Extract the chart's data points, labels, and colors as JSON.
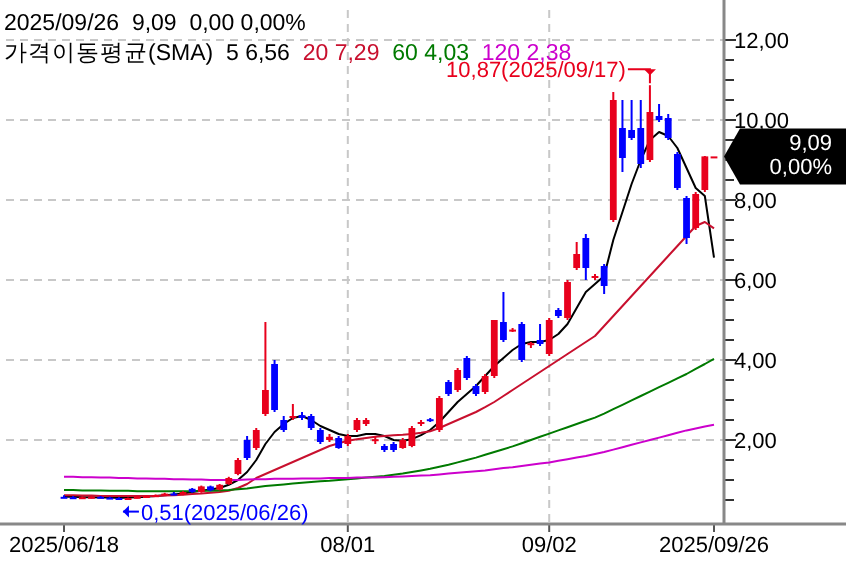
{
  "chart_data": {
    "type": "candlestick",
    "title": "2025/09/26  9,09  0,00 0,00%",
    "legend_title": "가격이동평균(SMA)",
    "legend": "top",
    "grid": true,
    "categories": [
      "2025/06/18",
      null,
      null,
      null,
      null,
      null,
      null,
      null,
      null,
      null,
      null,
      null,
      null,
      null,
      null,
      null,
      null,
      null,
      null,
      null,
      null,
      null,
      null,
      null,
      null,
      null,
      null,
      null,
      null,
      null,
      null,
      "08/01",
      null,
      null,
      null,
      null,
      null,
      null,
      null,
      null,
      null,
      null,
      null,
      null,
      null,
      null,
      null,
      null,
      null,
      null,
      null,
      null,
      null,
      "09/02",
      null,
      null,
      null,
      null,
      null,
      null,
      null,
      null,
      null,
      null,
      null,
      null,
      null,
      null,
      null,
      null,
      null,
      "2025/09/26"
    ],
    "ohlc": [
      [
        0.58,
        0.62,
        0.55,
        0.57
      ],
      [
        0.57,
        0.6,
        0.54,
        0.56
      ],
      [
        0.56,
        0.59,
        0.54,
        0.57
      ],
      [
        0.56,
        0.6,
        0.54,
        0.58
      ],
      [
        0.58,
        0.6,
        0.55,
        0.56
      ],
      [
        0.56,
        0.58,
        0.53,
        0.55
      ],
      [
        0.55,
        0.57,
        0.51,
        0.54
      ],
      [
        0.54,
        0.56,
        0.52,
        0.55
      ],
      [
        0.55,
        0.6,
        0.54,
        0.58
      ],
      [
        0.58,
        0.62,
        0.56,
        0.6
      ],
      [
        0.6,
        0.64,
        0.58,
        0.62
      ],
      [
        0.62,
        0.68,
        0.6,
        0.66
      ],
      [
        0.66,
        0.7,
        0.62,
        0.64
      ],
      [
        0.64,
        0.72,
        0.62,
        0.7
      ],
      [
        0.78,
        0.8,
        0.68,
        0.7
      ],
      [
        0.7,
        0.86,
        0.68,
        0.84
      ],
      [
        0.84,
        0.86,
        0.72,
        0.74
      ],
      [
        0.76,
        0.9,
        0.74,
        0.88
      ],
      [
        0.9,
        1.08,
        0.88,
        1.05
      ],
      [
        1.15,
        1.55,
        1.12,
        1.5
      ],
      [
        2.0,
        2.1,
        1.5,
        1.55
      ],
      [
        1.8,
        2.3,
        1.75,
        2.25
      ],
      [
        2.65,
        4.95,
        2.6,
        3.25
      ],
      [
        3.9,
        4.0,
        2.7,
        2.75
      ],
      [
        2.5,
        2.6,
        2.2,
        2.25
      ],
      [
        2.55,
        2.9,
        2.5,
        2.6
      ],
      [
        2.62,
        2.7,
        2.5,
        2.55
      ],
      [
        2.6,
        2.65,
        2.25,
        2.3
      ],
      [
        2.25,
        2.3,
        1.9,
        1.95
      ],
      [
        2.0,
        2.15,
        1.95,
        2.08
      ],
      [
        2.05,
        2.1,
        1.78,
        1.8
      ],
      [
        1.9,
        2.15,
        1.85,
        2.1
      ],
      [
        2.25,
        2.55,
        2.2,
        2.5
      ],
      [
        2.4,
        2.55,
        2.35,
        2.5
      ],
      [
        2.0,
        2.1,
        1.9,
        2.02
      ],
      [
        1.85,
        1.9,
        1.7,
        1.75
      ],
      [
        1.9,
        1.95,
        1.7,
        1.75
      ],
      [
        1.8,
        2.05,
        1.78,
        2.0
      ],
      [
        1.85,
        2.35,
        1.82,
        2.3
      ],
      [
        2.4,
        2.5,
        2.35,
        2.45
      ],
      [
        2.52,
        2.55,
        2.45,
        2.48
      ],
      [
        2.25,
        3.1,
        2.2,
        3.05
      ],
      [
        3.45,
        3.5,
        3.1,
        3.15
      ],
      [
        3.25,
        3.8,
        3.2,
        3.75
      ],
      [
        4.05,
        4.1,
        3.5,
        3.55
      ],
      [
        3.35,
        3.4,
        3.1,
        3.15
      ],
      [
        3.2,
        3.65,
        3.15,
        3.6
      ],
      [
        3.6,
        5.0,
        3.55,
        5.0
      ],
      [
        4.95,
        5.7,
        4.45,
        4.5
      ],
      [
        4.72,
        4.8,
        4.7,
        4.76
      ],
      [
        4.9,
        4.95,
        3.95,
        4.0
      ],
      [
        4.38,
        4.45,
        4.3,
        4.42
      ],
      [
        4.5,
        4.9,
        4.35,
        4.4
      ],
      [
        4.15,
        5.05,
        4.1,
        5.0
      ],
      [
        5.25,
        5.3,
        5.05,
        5.1
      ],
      [
        5.05,
        6.0,
        5.0,
        5.95
      ],
      [
        6.3,
        6.95,
        6.25,
        6.65
      ],
      [
        7.05,
        7.15,
        6.0,
        6.3
      ],
      [
        6.05,
        6.15,
        6.0,
        6.1
      ],
      [
        6.35,
        6.4,
        5.65,
        5.85
      ],
      [
        7.5,
        10.7,
        7.45,
        10.5
      ],
      [
        9.8,
        10.5,
        8.7,
        9.05
      ],
      [
        9.75,
        10.5,
        9.5,
        9.55
      ],
      [
        9.8,
        10.5,
        8.8,
        8.9
      ],
      [
        9.0,
        10.87,
        8.95,
        10.2
      ],
      [
        10.1,
        10.4,
        9.95,
        10.0
      ],
      [
        10.05,
        10.15,
        9.5,
        9.55
      ],
      [
        9.15,
        9.2,
        8.25,
        8.3
      ],
      [
        8.05,
        8.1,
        6.9,
        7.05
      ],
      [
        7.3,
        8.2,
        7.25,
        8.15
      ],
      [
        8.25,
        9.1,
        8.2,
        9.09
      ],
      [
        9.09,
        9.09,
        9.09,
        9.09
      ]
    ],
    "colors": [
      "#0000ff",
      "#0000ff",
      "#e8001c",
      "#e8001c",
      "#0000ff",
      "#0000ff",
      "#0000ff",
      "#e8001c",
      "#e8001c",
      "#e8001c",
      "#e8001c",
      "#e8001c",
      "#0000ff",
      "#e8001c",
      "#0000ff",
      "#e8001c",
      "#0000ff",
      "#e8001c",
      "#e8001c",
      "#e8001c",
      "#0000ff",
      "#e8001c",
      "#e8001c",
      "#0000ff",
      "#0000ff",
      "#e8001c",
      "#0000ff",
      "#0000ff",
      "#0000ff",
      "#e8001c",
      "#0000ff",
      "#e8001c",
      "#e8001c",
      "#e8001c",
      "#e8001c",
      "#0000ff",
      "#0000ff",
      "#e8001c",
      "#e8001c",
      "#e8001c",
      "#0000ff",
      "#e8001c",
      "#0000ff",
      "#e8001c",
      "#0000ff",
      "#0000ff",
      "#e8001c",
      "#e8001c",
      "#0000ff",
      "#e8001c",
      "#0000ff",
      "#e8001c",
      "#0000ff",
      "#e8001c",
      "#0000ff",
      "#e8001c",
      "#e8001c",
      "#0000ff",
      "#e8001c",
      "#0000ff",
      "#e8001c",
      "#0000ff",
      "#0000ff",
      "#0000ff",
      "#e8001c",
      "#0000ff",
      "#0000ff",
      "#0000ff",
      "#0000ff",
      "#e8001c",
      "#e8001c",
      "#e8001c"
    ],
    "series": [
      {
        "name": "5 6,56",
        "type": "line",
        "color": "#000000",
        "values": [
          0.58,
          0.58,
          0.57,
          0.57,
          0.56,
          0.56,
          0.55,
          0.56,
          0.57,
          0.58,
          0.6,
          0.62,
          0.64,
          0.66,
          0.7,
          0.73,
          0.76,
          0.8,
          0.88,
          1.0,
          1.2,
          1.5,
          1.9,
          2.2,
          2.4,
          2.55,
          2.6,
          2.5,
          2.35,
          2.25,
          2.15,
          2.1,
          2.1,
          2.15,
          2.15,
          2.1,
          2.0,
          1.98,
          2.02,
          2.12,
          2.25,
          2.45,
          2.7,
          2.95,
          3.15,
          3.35,
          3.6,
          3.85,
          4.05,
          4.25,
          4.4,
          4.45,
          4.45,
          4.5,
          4.65,
          4.9,
          5.3,
          5.7,
          5.9,
          6.1,
          7.0,
          7.7,
          8.4,
          9.0,
          9.5,
          9.7,
          9.6,
          9.3,
          8.8,
          8.3,
          8.1,
          6.56
        ]
      },
      {
        "name": "20 7,29",
        "type": "line",
        "color": "#c8102e",
        "values": [
          0.62,
          0.62,
          0.61,
          0.61,
          0.6,
          0.6,
          0.6,
          0.6,
          0.6,
          0.6,
          0.6,
          0.61,
          0.62,
          0.63,
          0.65,
          0.66,
          0.68,
          0.7,
          0.73,
          0.8,
          0.9,
          1.05,
          1.15,
          1.25,
          1.35,
          1.45,
          1.55,
          1.65,
          1.75,
          1.85,
          1.92,
          1.98,
          2.02,
          2.05,
          2.08,
          2.1,
          2.12,
          2.13,
          2.15,
          2.18,
          2.22,
          2.3,
          2.4,
          2.5,
          2.6,
          2.7,
          2.82,
          2.95,
          3.1,
          3.25,
          3.4,
          3.55,
          3.7,
          3.85,
          4.0,
          4.15,
          4.3,
          4.45,
          4.6,
          4.85,
          5.1,
          5.35,
          5.6,
          5.85,
          6.1,
          6.35,
          6.6,
          6.85,
          7.1,
          7.35,
          7.45,
          7.29
        ]
      },
      {
        "name": "60 4,03",
        "type": "line",
        "color": "#007a00",
        "values": [
          0.75,
          0.75,
          0.74,
          0.74,
          0.74,
          0.73,
          0.73,
          0.73,
          0.72,
          0.72,
          0.72,
          0.72,
          0.72,
          0.72,
          0.72,
          0.73,
          0.73,
          0.74,
          0.75,
          0.77,
          0.79,
          0.82,
          0.85,
          0.87,
          0.89,
          0.91,
          0.93,
          0.95,
          0.97,
          0.98,
          1.0,
          1.02,
          1.04,
          1.06,
          1.08,
          1.1,
          1.13,
          1.16,
          1.2,
          1.24,
          1.28,
          1.33,
          1.38,
          1.44,
          1.5,
          1.56,
          1.63,
          1.7,
          1.77,
          1.84,
          1.92,
          2.0,
          2.08,
          2.16,
          2.24,
          2.32,
          2.4,
          2.48,
          2.56,
          2.66,
          2.77,
          2.88,
          2.99,
          3.1,
          3.21,
          3.32,
          3.43,
          3.54,
          3.65,
          3.78,
          3.9,
          4.03
        ]
      },
      {
        "name": "120 2,38",
        "type": "line",
        "color": "#cc00cc",
        "values": [
          1.08,
          1.08,
          1.07,
          1.07,
          1.06,
          1.06,
          1.05,
          1.05,
          1.04,
          1.04,
          1.03,
          1.03,
          1.02,
          1.02,
          1.01,
          1.01,
          1.0,
          1.0,
          1.0,
          1.0,
          1.01,
          1.02,
          1.02,
          1.03,
          1.03,
          1.03,
          1.04,
          1.04,
          1.04,
          1.05,
          1.05,
          1.05,
          1.06,
          1.06,
          1.06,
          1.07,
          1.08,
          1.09,
          1.1,
          1.11,
          1.12,
          1.14,
          1.16,
          1.18,
          1.2,
          1.22,
          1.24,
          1.27,
          1.3,
          1.32,
          1.35,
          1.38,
          1.41,
          1.44,
          1.48,
          1.52,
          1.56,
          1.6,
          1.65,
          1.7,
          1.76,
          1.82,
          1.88,
          1.94,
          2.0,
          2.06,
          2.12,
          2.18,
          2.24,
          2.29,
          2.34,
          2.38
        ]
      }
    ],
    "ylim": [
      -0.1,
      12.75
    ],
    "yticks": [
      {
        "value": 0.5,
        "label": null
      },
      {
        "value": 1,
        "label": null
      },
      {
        "value": 1.5,
        "label": null
      },
      {
        "value": 2,
        "label": "2,00"
      },
      {
        "value": 2.5,
        "label": null
      },
      {
        "value": 3,
        "label": null
      },
      {
        "value": 3.5,
        "label": null
      },
      {
        "value": 4,
        "label": "4,00"
      },
      {
        "value": 4.5,
        "label": null
      },
      {
        "value": 5,
        "label": null
      },
      {
        "value": 5.5,
        "label": null
      },
      {
        "value": 6,
        "label": "6,00"
      },
      {
        "value": 6.5,
        "label": null
      },
      {
        "value": 7,
        "label": null
      },
      {
        "value": 7.5,
        "label": null
      },
      {
        "value": 8,
        "label": "8,00"
      },
      {
        "value": 8.5,
        "label": null
      },
      {
        "value": 9,
        "label": null
      },
      {
        "value": 9.5,
        "label": null
      },
      {
        "value": 10,
        "label": "10,00"
      },
      {
        "value": 10.5,
        "label": null
      },
      {
        "value": 11,
        "label": null
      },
      {
        "value": 11.5,
        "label": null
      },
      {
        "value": 12,
        "label": "12,00"
      }
    ],
    "annotations": [
      "10,87(2025/09/17)",
      {
        "text": "0,51(2025/06/26)",
        "y": 0.51
      },
      "9,09\n0,00%"
    ]
  }
}
